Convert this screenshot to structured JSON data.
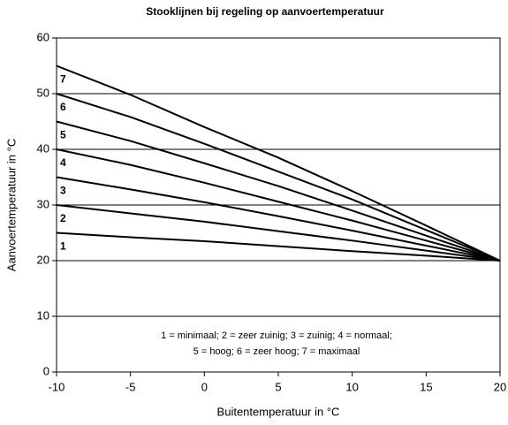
{
  "chart_data": {
    "type": "line",
    "title": "Stooklijnen bij regeling op aanvoertemperatuur",
    "x_label": "Buitentemperatuur in °C",
    "y_label": "Aanvoertemperatuur in °C",
    "x": [
      -10,
      -5,
      0,
      5,
      10,
      15,
      20
    ],
    "series": [
      {
        "name": "1",
        "color": "#000000",
        "values": [
          25,
          24.2,
          23.5,
          22.6,
          21.7,
          20.9,
          20
        ]
      },
      {
        "name": "2",
        "color": "#000000",
        "values": [
          30,
          28.5,
          27,
          25.3,
          23.6,
          21.8,
          20
        ]
      },
      {
        "name": "3",
        "color": "#000000",
        "values": [
          35,
          32.8,
          30.5,
          28,
          25.4,
          22.7,
          20
        ]
      },
      {
        "name": "4",
        "color": "#000000",
        "values": [
          40,
          37.2,
          34,
          30.6,
          27.2,
          23.6,
          20
        ]
      },
      {
        "name": "5",
        "color": "#000000",
        "values": [
          45,
          41.5,
          37.5,
          33.4,
          29,
          24.5,
          20
        ]
      },
      {
        "name": "6",
        "color": "#000000",
        "values": [
          50,
          45.8,
          41,
          36,
          31,
          25.5,
          20
        ]
      },
      {
        "name": "7",
        "color": "#000000",
        "values": [
          55,
          49.8,
          44,
          38.5,
          32.5,
          26.3,
          20
        ]
      }
    ],
    "annotation": [
      "1 = minimaal; 2 = zeer zuinig; 3 = zuinig; 4 = normaal;",
      "5 = hoog; 6 = zeer hoog; 7 = maximaal"
    ],
    "xlim": [
      -10,
      20
    ],
    "xticks": [
      -10,
      -5,
      0,
      5,
      10,
      15,
      20
    ],
    "ylim": [
      0,
      60
    ],
    "yticks": [
      0,
      10,
      20,
      30,
      40,
      50,
      60
    ],
    "grid": true
  }
}
